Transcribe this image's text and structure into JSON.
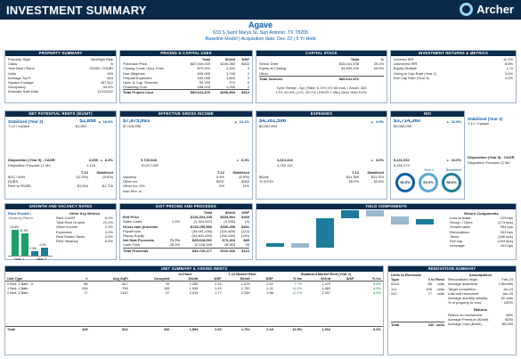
{
  "top": {
    "title": "INVESTMENT SUMMARY",
    "brand": "Archer"
  },
  "header": {
    "name": "Agave",
    "address": "633 S Saint Marys St, San Antonio, TX 78205",
    "subtitle": "Baseline Model  |  Acquisition date: Dec-22  |  5 Yr Hold"
  },
  "property_summary": {
    "title": "PROPERTY SUMMARY",
    "rows": [
      [
        "Property Style",
        "Mid/High Rise"
      ],
      [
        "Class",
        "A"
      ],
      [
        "Year Built / Reno",
        "2016B / 2018R"
      ],
      [
        "Units",
        "349"
      ],
      [
        "Average Sq Ft",
        "824"
      ],
      [
        "Square Footage",
        "287,612"
      ],
      [
        "Occupancy",
        "94.4%"
      ],
      [
        "Estimate Sale Date",
        "12/1/2022"
      ]
    ]
  },
  "pricing": {
    "title": "PRICING & CAPITAL USES",
    "head": [
      "Total",
      "$/Unit",
      "$/SF"
    ],
    "rows": [
      [
        "Purchase Price",
        "$87,000,000",
        "$249,284",
        "$302"
      ],
      [
        "Closing Costs / Acq. Fees",
        "870,000",
        "2,493",
        "3"
      ],
      [
        "Due Diligence",
        "609,000",
        "1,745",
        "2"
      ],
      [
        "Prepaid Expenses",
        "630,098",
        "1,805",
        "2"
      ],
      [
        "Oper. & Cap. Reserve",
        "94,760",
        "272",
        "0"
      ],
      [
        "Financing Cost",
        "438,018",
        "1,255",
        "2"
      ]
    ],
    "total": [
      "Total Project Cost",
      "$89,641,876",
      "$256,854",
      "$312"
    ]
  },
  "capital_stack": {
    "title": "CAPITAL STACK",
    "head": [
      "Total",
      "%"
    ],
    "rows": [
      [
        "Senior Debt",
        "$35,041,436",
        "39.1%"
      ],
      [
        "Equity at Closing",
        "54,600,439",
        "60.9%"
      ],
      [
        "Other",
        "-",
        "-"
      ]
    ],
    "total": [
      "Total Sources",
      "$89,641,876",
      ""
    ],
    "note1": "Type: Bridge - 5yr | Rate: 6.1% | I/O 60 mos. | Amort. 360",
    "note2": "LTV: 40.3% | LTC: 39.1% | DSCR 1.49x | Debt Yield 9.0%"
  },
  "returns": {
    "title": "INVESTMENT RETURNS & METRICS",
    "rows": [
      [
        "Levered IRR",
        "11.2%"
      ],
      [
        "Unlevered IRR",
        "8.5%"
      ],
      [
        "Equity Multiple",
        "1.7x"
      ],
      [
        "Going-in Cap Rate (Year 1)",
        "3.6%"
      ],
      [
        "Exit Cap Rate (Year 5)",
        "4.0%"
      ]
    ]
  },
  "net_potential": {
    "title": "NET POTENTIAL RENTS ($/UNIT)",
    "stab_label": "Stabilized (Year 2)",
    "stab_value": "$1,858",
    "growth": "18.9%",
    "inplace_label": "T-12 / Inplace",
    "inplace_value": "$1,563",
    "cagr_label": "Disposition (Year 5) - CAGR",
    "cagr_y": "2,059",
    "cagr_pct": "6.4%",
    "fwd_label": "Disposition Forward 12 Mo",
    "fwd_y": "2,116",
    "head": [
      "T-12",
      "Stabilized"
    ],
    "rows": [
      [
        "$/SJ / 60%",
        "(11.5%)",
        "(5.6%)"
      ],
      [
        "RUBS",
        "",
        ""
      ],
      [
        "Rent w/ RUBS",
        "$1,594",
        "$1,726"
      ]
    ]
  },
  "egi": {
    "title": "EFFECTIVE GROSS INCOME",
    "stab_value": "$7,875,993",
    "growth": "12.1%",
    "inplace_value": "$7,028,898",
    "cagr_y": "9,745,348",
    "cagr_pct": "6.4%",
    "fwd_y": "10,017,302",
    "head": [
      "T-12",
      "Stabilized"
    ],
    "rows": [
      [
        "Vacancy",
        "5.4%",
        "(5.9%)"
      ],
      [
        "Other Inc",
        "$237",
        "$263"
      ],
      [
        "Other Inc. 6%",
        "6%",
        "11%"
      ],
      [
        "Non-Rev. In",
        "",
        ""
      ]
    ]
  },
  "expenses": {
    "title": "EXPENSES",
    "stab_value": "$4,161,596",
    "growth": "4.9%",
    "inplace_value": "$3,967,803",
    "cagr_y": "4,613,416",
    "cagr_pct": "3.0%",
    "fwd_y": "4,762,112",
    "head": [
      "T-12",
      "Stabilized"
    ],
    "rows": [
      [
        "$/Unit",
        "$11,369",
        "$11,924"
      ],
      [
        "% of EGI",
        "56.5%",
        "52.8%"
      ]
    ]
  },
  "noi": {
    "title": "NOI",
    "stab_value": "$3,714,360",
    "growth": "21.8%",
    "inplace_value": "$3,050,095",
    "cagr_y": "5,131,932",
    "cagr_pct": "10.0%",
    "fwd_y": "5,255,270",
    "year1": "Year 1",
    "stabilized": "Stabilized",
    "rings": [
      "56.5%",
      "65.9%",
      "58.6%"
    ]
  },
  "right_kpi": {
    "stab_label": "Stabilized (Year 2)",
    "inplace_label": "T-12 / Inplace",
    "cagr_label": "Disposition (Year 5) - CAGR",
    "fwd_label": "Disposition Forward 12 Mo"
  },
  "growth": {
    "title": "GROWTH AND VACANCY RATES",
    "tabs": [
      "Rent Growth",
      "Vacancy Rates"
    ],
    "bars_label": [
      "Year 1",
      "Year 2"
    ],
    "bars": [
      {
        "label": "Year 1",
        "value": 13.4,
        "text": "13.4%"
      },
      {
        "label": "Year 2",
        "value": 11.9,
        "text": "11.9%"
      },
      {
        "label": "",
        "value": 2.3,
        "text": "2.3%"
      },
      {
        "label": "",
        "value": 4.3,
        "text": "4.3%"
      }
    ],
    "assump_title": "Other Key Metrics",
    "assump": [
      [
        "Rent CAGR",
        "6.0%"
      ],
      [
        "Total Rent Growth",
        "21.0%"
      ],
      [
        "Other Income",
        "2.5%"
      ],
      [
        "Expenses",
        "3.0%"
      ],
      [
        "Real Estate Taxes",
        "2.5%"
      ],
      [
        "Rent Vacancy",
        "-5.5%"
      ]
    ]
  },
  "exit": {
    "title": "EXIT PRICING AND PROCEEDS",
    "head": [
      "Total",
      "$/Unit",
      "$/SF"
    ],
    "rows": [
      [
        "Exit Price",
        "$116,404,208",
        "$333,594",
        "$405"
      ],
      [
        "Sales Costs",
        "1.0%",
        "(1,164,042)",
        "(3,336)",
        "(4)"
      ],
      [
        "Gross sale proceeds",
        "",
        "$115,259,966",
        "$330,258",
        "$401"
      ],
      [
        "Payoff loan",
        "",
        "(35,041,436)",
        "(100,405)",
        "(122)"
      ],
      [
        "Repay Equity",
        "",
        "(54,600,439)",
        "(156,448)",
        "(190)"
      ],
      [
        "Net Sale Proceeds",
        "71.7%",
        "$25,618,091",
        "$73,404",
        "$89"
      ],
      [
        "Cash Flow",
        "28.3%",
        "10,108,186",
        "28,963",
        "35"
      ],
      [
        "Total Proceeds",
        "",
        "$35,726,277",
        "$102,366",
        "$124"
      ]
    ]
  },
  "yield": {
    "title": "YIELD COMPONENTS",
    "return_title": "Return Components",
    "return_rows": [
      [
        "Loss to lease",
        "129 bps"
      ],
      [
        "Occup. / Opex",
        "(173 bps)"
      ],
      [
        "Growth rates",
        "994 bps"
      ],
      [
        "Renovations",
        "243 bps"
      ],
      [
        "Taxes",
        "(186 bps)"
      ],
      [
        "Exit cap",
        "(263 bps)"
      ],
      [
        "Leverage",
        "163 bps"
      ]
    ],
    "bars": [
      1.29,
      -1.73,
      9.94,
      2.43,
      -1.86,
      -2.63,
      1.63
    ]
  },
  "unit_summary": {
    "title": "UNIT SUMMARY & ASKING RENTS",
    "groups": [
      "In-Place",
      "T-12 Market Rent",
      "Stabilized Market Rent (Year 2)"
    ],
    "head": [
      "Unit Type",
      "#",
      "Avg SqFt",
      "Occupied",
      "$/Unit",
      "$/SF",
      "$/Unit",
      "$/SF",
      "% Inc",
      "$/Unit",
      "$/SF",
      "% Inc"
    ],
    "rows": [
      [
        "0 Bed, 1 Bath - A",
        "66",
        "547",
        "45",
        "1,280",
        "2.34",
        "1,378",
        "2.52",
        "7.7%",
        "1,470",
        "",
        "6.6%"
      ],
      [
        "1 Bed, 1 Bath",
        "206",
        "798",
        "198",
        "1,538",
        "1.93",
        "1,753",
        "2.21",
        "14.0%",
        "1,869",
        "",
        "6.6%"
      ],
      [
        "2 Bed, 2 Bath",
        "77",
        "1140",
        "67",
        "2,014",
        "1.77",
        "2,258",
        "1.98",
        "12.1%",
        "2,407",
        "",
        "6.6%"
      ]
    ],
    "total": [
      "Total",
      "349",
      "824",
      "330",
      "1,594",
      "1.93",
      "1,794",
      "2.18",
      "12.5%",
      "1,912",
      "",
      "6.6%"
    ]
  },
  "renovation": {
    "title": "RENOVATION SUMMARY",
    "head": [
      "Units to Renovate",
      "Type",
      "# to Reno"
    ],
    "rows": [
      [
        "0x1A",
        "66",
        "units"
      ],
      [
        "1x1",
        "206",
        "units"
      ],
      [
        "2x2",
        "77",
        "units"
      ]
    ],
    "total": [
      "Total",
      "349",
      "units"
    ],
    "assump_title": "Assumptions",
    "assump": [
      [
        "Renovations begin",
        "Feb-23"
      ],
      [
        "Average downtime",
        "2 Months"
      ],
      [
        "Target completion",
        "Jul-24"
      ],
      [
        "Last unit renovated",
        "Jan-25"
      ],
      [
        "Average monthly velocity",
        "15 units"
      ],
      [
        "% of property to reno",
        "100%"
      ]
    ],
    "ret_title": "Returns",
    "ret": [
      [
        "Return on investment",
        "48%"
      ],
      [
        "Average Premium ($/unit)",
        "$250"
      ],
      [
        "Average Cost ($/unit)",
        "$5,000"
      ]
    ]
  }
}
